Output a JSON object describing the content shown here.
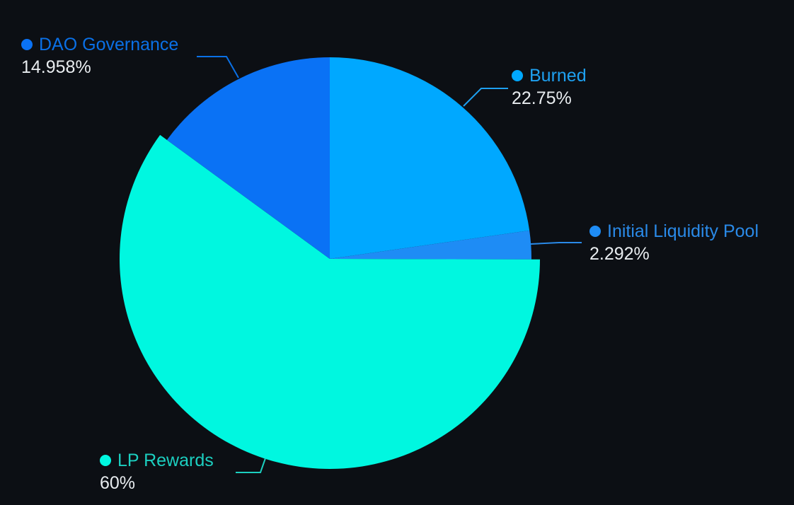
{
  "chart_data": {
    "type": "pie",
    "start_angle": "12 o'clock, clockwise",
    "highlighted_slice": "LP Rewards",
    "slices": [
      {
        "name": "Burned",
        "value": 22.75,
        "label": "22.75%",
        "color": "#00a8ff",
        "text_color": "#1ea0f0"
      },
      {
        "name": "Initial Liquidity Pool",
        "value": 2.292,
        "label": "2.292%",
        "color": "#1e8cf5",
        "text_color": "#2a8ae8"
      },
      {
        "name": "LP Rewards",
        "value": 60,
        "label": "60%",
        "color": "#00f7e0",
        "text_color": "#1ccfc0"
      },
      {
        "name": "DAO Governance",
        "value": 14.958,
        "label": "14.958%",
        "color": "#0a72f5",
        "text_color": "#0a70e6"
      }
    ]
  }
}
